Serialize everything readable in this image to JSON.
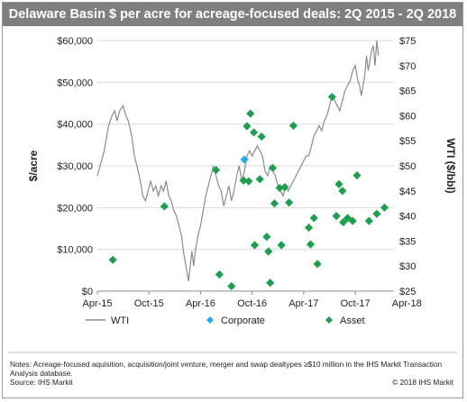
{
  "chart_data": {
    "type": "scatter",
    "title": "Delaware Basin $ per acre for acreage-focused deals: 2Q 2015 - 2Q 2018",
    "ylabel": "$/acre",
    "y2label": "WTI ($/bbl)",
    "ylim": [
      0,
      60000
    ],
    "y2lim": [
      25,
      75
    ],
    "yticks": [
      "$0",
      "$10,000",
      "$20,000",
      "$30,000",
      "$40,000",
      "$50,000",
      "$60,000"
    ],
    "y2ticks": [
      "$25",
      "$30",
      "$35",
      "$40",
      "$45",
      "$50",
      "$55",
      "$60",
      "$65",
      "$70",
      "$75"
    ],
    "xticks": [
      "Apr-15",
      "Oct-15",
      "Apr-16",
      "Oct-16",
      "Apr-17",
      "Oct-17",
      "Apr-18"
    ],
    "grid": "horizontal",
    "legend_position": "bottom",
    "legend": [
      "WTI",
      "Corporate",
      "Asset"
    ],
    "series": [
      {
        "name": "WTI",
        "kind": "line",
        "axis": "right",
        "color": "#8c8c8c",
        "points": [
          [
            0,
            48
          ],
          [
            0.8,
            53
          ],
          [
            1.3,
            58
          ],
          [
            1.7,
            60
          ],
          [
            2.0,
            61
          ],
          [
            2.3,
            59
          ],
          [
            2.6,
            61
          ],
          [
            3.0,
            62
          ],
          [
            3.3,
            60
          ],
          [
            3.6,
            59
          ],
          [
            4.0,
            56
          ],
          [
            4.3,
            52
          ],
          [
            4.6,
            50
          ],
          [
            5.0,
            47
          ],
          [
            5.3,
            44
          ],
          [
            5.6,
            43
          ],
          [
            5.9,
            45
          ],
          [
            6.2,
            47
          ],
          [
            6.5,
            45
          ],
          [
            6.8,
            46
          ],
          [
            7.1,
            44
          ],
          [
            7.4,
            46
          ],
          [
            7.7,
            45
          ],
          [
            8.0,
            47
          ],
          [
            8.3,
            44
          ],
          [
            8.6,
            43
          ],
          [
            8.9,
            41
          ],
          [
            9.2,
            40
          ],
          [
            9.5,
            38
          ],
          [
            9.8,
            36
          ],
          [
            10.0,
            33
          ],
          [
            10.2,
            31
          ],
          [
            10.4,
            29
          ],
          [
            10.6,
            27
          ],
          [
            10.8,
            30
          ],
          [
            11.0,
            33
          ],
          [
            11.2,
            30
          ],
          [
            11.4,
            33
          ],
          [
            11.7,
            36
          ],
          [
            12.0,
            38
          ],
          [
            12.3,
            41
          ],
          [
            12.6,
            44
          ],
          [
            12.9,
            46
          ],
          [
            13.2,
            48
          ],
          [
            13.5,
            50
          ],
          [
            13.8,
            48
          ],
          [
            14.1,
            46
          ],
          [
            14.4,
            45
          ],
          [
            14.7,
            42
          ],
          [
            15.0,
            44
          ],
          [
            15.3,
            46
          ],
          [
            15.6,
            43
          ],
          [
            15.9,
            45
          ],
          [
            16.2,
            48
          ],
          [
            16.5,
            50
          ],
          [
            16.8,
            47
          ],
          [
            17.1,
            49
          ],
          [
            17.4,
            52
          ],
          [
            17.7,
            53
          ],
          [
            18.0,
            52
          ],
          [
            18.3,
            53
          ],
          [
            18.6,
            54
          ],
          [
            18.9,
            53
          ],
          [
            19.2,
            52
          ],
          [
            19.5,
            49
          ],
          [
            19.8,
            48
          ],
          [
            20.1,
            50
          ],
          [
            20.4,
            49
          ],
          [
            20.7,
            48
          ],
          [
            21.0,
            46
          ],
          [
            21.3,
            45
          ],
          [
            21.6,
            44
          ],
          [
            21.9,
            46
          ],
          [
            22.2,
            45
          ],
          [
            22.5,
            46
          ],
          [
            22.8,
            47
          ],
          [
            23.1,
            48
          ],
          [
            23.4,
            49
          ],
          [
            23.7,
            50
          ],
          [
            24.0,
            51
          ],
          [
            24.3,
            52
          ],
          [
            24.6,
            52
          ],
          [
            24.9,
            54
          ],
          [
            25.2,
            56
          ],
          [
            25.5,
            57
          ],
          [
            25.8,
            58
          ],
          [
            26.1,
            57
          ],
          [
            26.4,
            59
          ],
          [
            26.7,
            60
          ],
          [
            27.0,
            62
          ],
          [
            27.3,
            64
          ],
          [
            27.6,
            63
          ],
          [
            27.9,
            62
          ],
          [
            28.2,
            61
          ],
          [
            28.5,
            63
          ],
          [
            28.8,
            65
          ],
          [
            29.1,
            66
          ],
          [
            29.4,
            67
          ],
          [
            29.7,
            69
          ],
          [
            30.0,
            70
          ],
          [
            30.3,
            67
          ],
          [
            30.5,
            66
          ],
          [
            30.7,
            64
          ],
          [
            30.9,
            66
          ],
          [
            31.1,
            68
          ],
          [
            31.3,
            72
          ],
          [
            31.5,
            69
          ],
          [
            31.7,
            71
          ],
          [
            31.9,
            73
          ],
          [
            32.1,
            74
          ],
          [
            32.3,
            70
          ],
          [
            32.5,
            75
          ],
          [
            32.7,
            72
          ]
        ]
      },
      {
        "name": "Corporate",
        "kind": "scatter",
        "axis": "left",
        "color": "#29a9e1",
        "points": [
          [
            17.1,
            31500
          ]
        ]
      },
      {
        "name": "Asset",
        "kind": "scatter",
        "axis": "left",
        "color": "#1f9e4f",
        "points": [
          [
            1.8,
            7500
          ],
          [
            7.8,
            20300
          ],
          [
            13.8,
            29000
          ],
          [
            14.2,
            4000
          ],
          [
            15.6,
            1200
          ],
          [
            17.0,
            26500
          ],
          [
            17.4,
            39500
          ],
          [
            17.6,
            26300
          ],
          [
            17.8,
            42500
          ],
          [
            18.2,
            38000
          ],
          [
            18.3,
            11000
          ],
          [
            18.9,
            26800
          ],
          [
            19.1,
            37000
          ],
          [
            19.7,
            13000
          ],
          [
            19.9,
            9500
          ],
          [
            20.1,
            2000
          ],
          [
            20.4,
            29500
          ],
          [
            20.6,
            21000
          ],
          [
            21.2,
            24700
          ],
          [
            21.4,
            11000
          ],
          [
            21.8,
            24900
          ],
          [
            22.3,
            21200
          ],
          [
            22.8,
            39600
          ],
          [
            24.6,
            15200
          ],
          [
            24.8,
            11200
          ],
          [
            25.2,
            17500
          ],
          [
            25.6,
            6500
          ],
          [
            27.3,
            46500
          ],
          [
            27.8,
            18000
          ],
          [
            28.1,
            25600
          ],
          [
            28.5,
            24000
          ],
          [
            28.6,
            16500
          ],
          [
            29.1,
            17500
          ],
          [
            29.7,
            16800
          ],
          [
            30.2,
            27700
          ],
          [
            31.6,
            16800
          ],
          [
            32.5,
            18500
          ],
          [
            33.4,
            20000
          ]
        ]
      }
    ]
  },
  "notes": {
    "line1": "Notes: Acreage-focused aquisition, acquisition/joint venture, merger and swap dealtypes ≥$10 million in the IHS Markit Transaction",
    "line2": "Analysis database.",
    "line3": "Source: IHS Markit",
    "copyright": "© 2018 IHS Markit"
  },
  "colors": {
    "title_bar": "#7f7f7f",
    "wti": "#8c8c8c",
    "corporate": "#29a9e1",
    "asset": "#1f9e4f"
  }
}
